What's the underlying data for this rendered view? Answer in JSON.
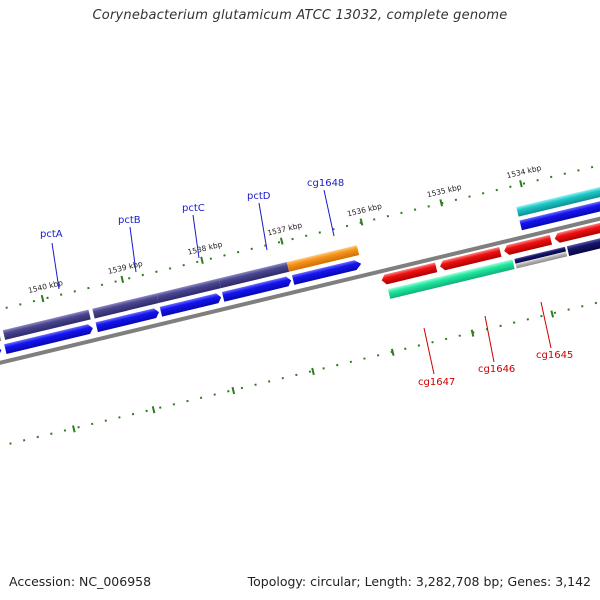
{
  "title": "Corynebacterium glutamicum ATCC 13032, complete genome",
  "footer": {
    "accession": "Accession: NC_006958",
    "info": "Topology: circular; Length: 3,282,708 bp; Genes: 3,142"
  },
  "colors": {
    "backbone": "#7f7f7f",
    "tick": "#2e7d1e",
    "forward_label": "#1a1acc",
    "reverse_label": "#cc0000",
    "blue_arrow": "#1010e8",
    "purple_bar": "#4a4690",
    "orange_bar": "#f7941d",
    "red_arrow": "#ee1111",
    "green_bar": "#21e8a0",
    "cyan_bar": "#1fc8c8",
    "navy_bar": "#14146e",
    "grey_bar": "#b8b8b8"
  },
  "scale_labels": [
    "1540 kbp",
    "1539 kbp",
    "1538 kbp",
    "1537 kbp",
    "1536 kbp",
    "1535 kbp",
    "1534 kbp"
  ],
  "forward_genes": [
    "pctA",
    "pctB",
    "pctC",
    "pctD",
    "cg1648"
  ],
  "reverse_genes": [
    "cg1647",
    "cg1646",
    "cg1645"
  ]
}
